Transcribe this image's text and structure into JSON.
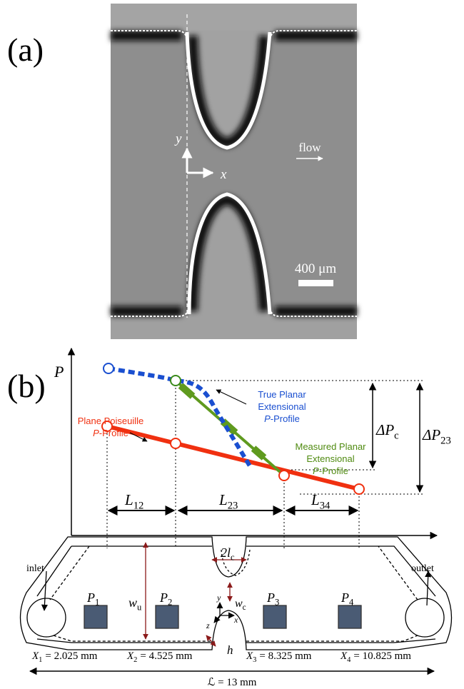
{
  "panel_a": {
    "label": "(a)",
    "axis_y": "y",
    "axis_x": "x",
    "flow": "flow",
    "scale_bar": "400 μm"
  },
  "panel_b": {
    "label": "(b)",
    "axis_p": "P",
    "true_profile": {
      "line1": "True Planar",
      "line2": "Extensional",
      "italic": "P",
      "rest": "-Profile"
    },
    "measured_profile": {
      "line1": "Measured Planar",
      "line2": "Extensional",
      "italic": "P",
      "rest": "-Profile"
    },
    "poiseuille_profile": {
      "line1": "Plane Poiseuille",
      "italic": "P",
      "rest": "-Profile"
    },
    "delta_pc": {
      "symbol": "ΔP",
      "subscript": "c"
    },
    "delta_p23": {
      "symbol": "ΔP",
      "subscript": "23"
    },
    "lengths": [
      {
        "symbol": "L",
        "subscript": "12"
      },
      {
        "symbol": "L",
        "subscript": "23"
      },
      {
        "symbol": "L",
        "subscript": "34"
      }
    ]
  },
  "device": {
    "inlet": "inlet",
    "outlet": "outlet",
    "taps": [
      {
        "symbol": "P",
        "subscript": "1"
      },
      {
        "symbol": "P",
        "subscript": "2"
      },
      {
        "symbol": "P",
        "subscript": "3"
      },
      {
        "symbol": "P",
        "subscript": "4"
      }
    ],
    "w_u": {
      "symbol": "w",
      "subscript": "u"
    },
    "w_c": {
      "symbol": "w",
      "subscript": "c"
    },
    "two_lc": {
      "symbol": "2l",
      "subscript": "c"
    },
    "h": "h",
    "axis_x": "x",
    "axis_y": "y",
    "axis_z": "z",
    "positions": [
      {
        "symbol": "X",
        "subscript": "1",
        "text": "= 2.025 mm"
      },
      {
        "symbol": "X",
        "subscript": "2",
        "text": "= 4.525 mm"
      },
      {
        "symbol": "X",
        "subscript": "3",
        "text": "= 8.325 mm"
      },
      {
        "symbol": "X",
        "subscript": "4",
        "text": "= 10.825 mm"
      }
    ],
    "total": "ℒ = 13 mm"
  }
}
